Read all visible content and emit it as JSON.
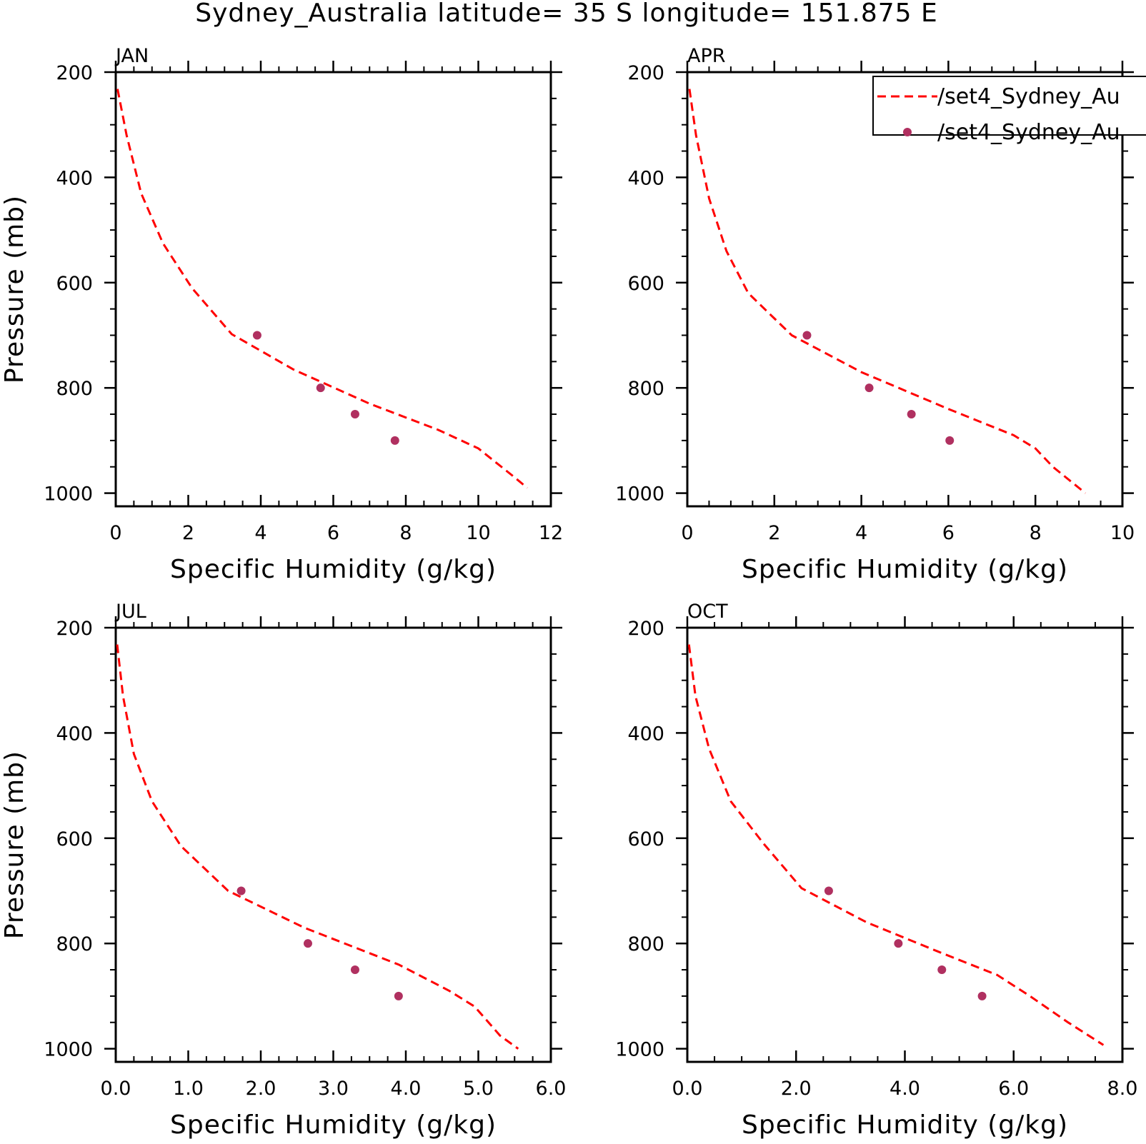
{
  "title": "Sydney_Australia  latitude= 35 S longitude= 151.875 E",
  "colors": {
    "model": "#ff0000",
    "obs": "#b03060",
    "axis": "#000000"
  },
  "legend": {
    "placement": "top-right",
    "entries": [
      {
        "label": "/set4_Sydney_Au",
        "style": "dashed-line",
        "color": "#ff0000"
      },
      {
        "label": "/set4_Sydney_Au",
        "style": "dot",
        "color": "#b03060"
      }
    ]
  },
  "chart_data": [
    {
      "type": "line",
      "title": "JAN",
      "xlabel": "Specific Humidity (g/kg)",
      "ylabel": "Pressure (mb)",
      "xlim": [
        0,
        12
      ],
      "ylim": [
        200,
        1025
      ],
      "y_inverted": true,
      "xticks": [
        0,
        2,
        4,
        6,
        8,
        10,
        12
      ],
      "xtick_labels": [
        "0",
        "2",
        "4",
        "6",
        "8",
        "10",
        "12"
      ],
      "yticks": [
        200,
        400,
        600,
        800,
        1000
      ],
      "ytick_labels": [
        "200",
        "400",
        "600",
        "800",
        "1000"
      ],
      "series": [
        {
          "style": "dashed-line",
          "x": [
            0.05,
            0.3,
            0.7,
            1.3,
            2.1,
            3.2,
            4.9,
            7.0,
            8.9,
            10.0,
            11.0,
            11.35
          ],
          "y": [
            232,
            320,
            430,
            525,
            610,
            698,
            765,
            830,
            880,
            915,
            970,
            990
          ]
        },
        {
          "style": "scatter",
          "x": [
            3.9,
            5.65,
            6.6,
            7.7
          ],
          "y": [
            700,
            800,
            850,
            900
          ]
        }
      ]
    },
    {
      "type": "line",
      "title": "APR",
      "xlabel": "Specific Humidity (g/kg)",
      "ylabel": "",
      "xlim": [
        0,
        10
      ],
      "ylim": [
        200,
        1025
      ],
      "y_inverted": true,
      "xticks": [
        0,
        2,
        4,
        6,
        8,
        10
      ],
      "xtick_labels": [
        "0",
        "2",
        "4",
        "6",
        "8",
        "10"
      ],
      "yticks": [
        200,
        400,
        600,
        800,
        1000
      ],
      "ytick_labels": [
        "200",
        "400",
        "600",
        "800",
        "1000"
      ],
      "series": [
        {
          "style": "dashed-line",
          "x": [
            0.05,
            0.2,
            0.5,
            0.9,
            1.4,
            2.4,
            4.0,
            6.0,
            7.5,
            8.0,
            8.4,
            9.15
          ],
          "y": [
            232,
            320,
            440,
            540,
            620,
            700,
            770,
            840,
            890,
            915,
            950,
            1000
          ]
        },
        {
          "style": "scatter",
          "x": [
            2.75,
            4.18,
            5.15,
            6.03
          ],
          "y": [
            700,
            800,
            850,
            900
          ]
        }
      ]
    },
    {
      "type": "line",
      "title": "JUL",
      "xlabel": "Specific Humidity (g/kg)",
      "ylabel": "Pressure (mb)",
      "xlim": [
        0,
        6
      ],
      "ylim": [
        200,
        1025
      ],
      "y_inverted": true,
      "xticks": [
        0,
        1,
        2,
        3,
        4,
        5,
        6
      ],
      "xtick_labels": [
        "0.0",
        "1.0",
        "2.0",
        "3.0",
        "4.0",
        "5.0",
        "6.0"
      ],
      "yticks": [
        200,
        400,
        600,
        800,
        1000
      ],
      "ytick_labels": [
        "200",
        "400",
        "600",
        "800",
        "1000"
      ],
      "series": [
        {
          "style": "dashed-line",
          "x": [
            0.02,
            0.1,
            0.25,
            0.5,
            0.9,
            1.55,
            2.6,
            3.9,
            4.6,
            4.95,
            5.3,
            5.55
          ],
          "y": [
            232,
            330,
            440,
            530,
            615,
            700,
            770,
            840,
            890,
            920,
            975,
            1000
          ]
        },
        {
          "style": "scatter",
          "x": [
            1.73,
            2.65,
            3.3,
            3.9
          ],
          "y": [
            700,
            800,
            850,
            900
          ]
        }
      ]
    },
    {
      "type": "line",
      "title": "OCT",
      "xlabel": "Specific Humidity (g/kg)",
      "ylabel": "",
      "xlim": [
        0,
        8
      ],
      "ylim": [
        200,
        1025
      ],
      "y_inverted": true,
      "xticks": [
        0,
        2,
        4,
        6,
        8
      ],
      "xtick_labels": [
        "0.0",
        "2.0",
        "4.0",
        "6.0",
        "8.0"
      ],
      "yticks": [
        200,
        400,
        600,
        800,
        1000
      ],
      "ytick_labels": [
        "200",
        "400",
        "600",
        "800",
        "1000"
      ],
      "series": [
        {
          "style": "dashed-line",
          "x": [
            0.03,
            0.15,
            0.4,
            0.8,
            1.4,
            2.1,
            3.3,
            4.6,
            5.7,
            6.3,
            7.0,
            7.65
          ],
          "y": [
            232,
            330,
            430,
            530,
            610,
            695,
            760,
            815,
            860,
            900,
            950,
            993
          ]
        },
        {
          "style": "scatter",
          "x": [
            2.6,
            3.88,
            4.68,
            5.42
          ],
          "y": [
            700,
            800,
            850,
            900
          ]
        }
      ]
    }
  ]
}
